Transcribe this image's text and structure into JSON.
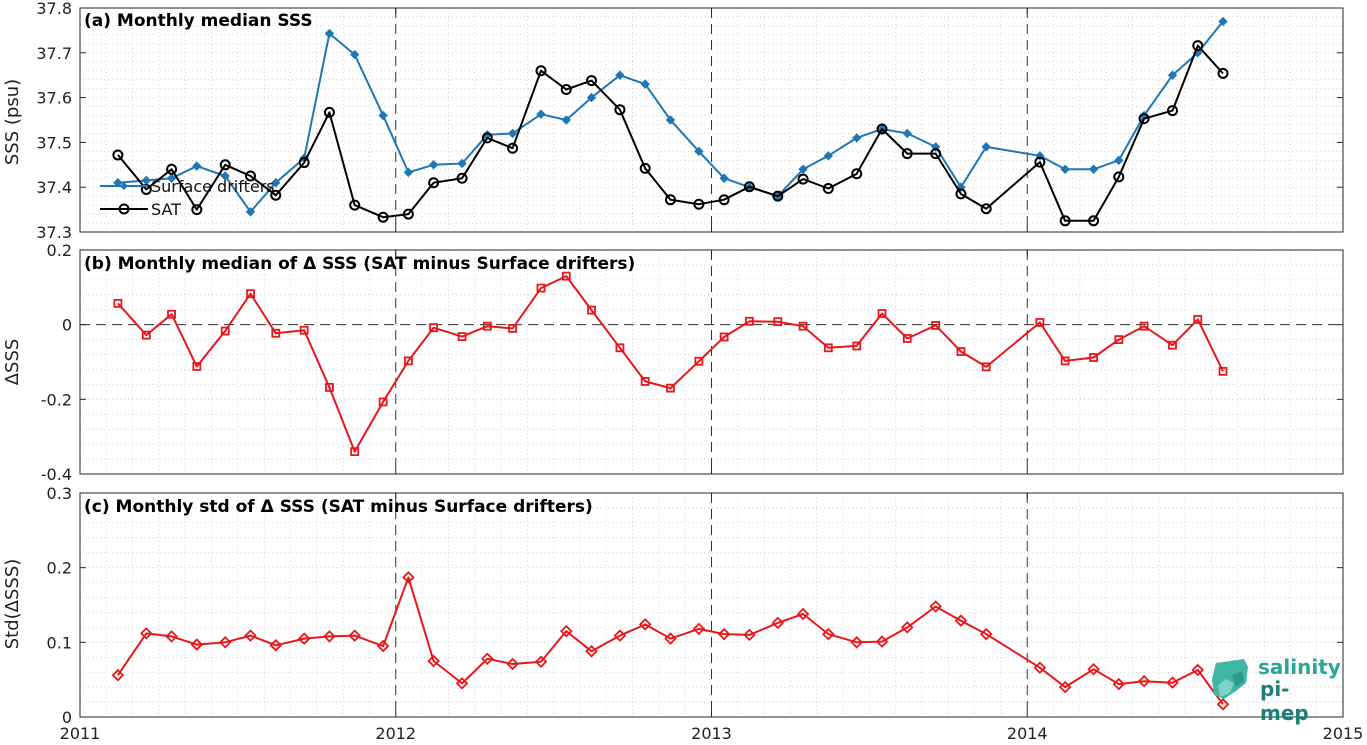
{
  "chart_data": [
    {
      "type": "line",
      "title": "(a) Monthly median SSS",
      "ylabel": "SSS (psu)",
      "ylim": [
        37.3,
        37.8
      ],
      "yticks": [
        "37.3",
        "37.4",
        "37.5",
        "37.6",
        "37.7",
        "37.8"
      ],
      "xlim": [
        2011,
        2015
      ],
      "xticks": [
        "2011",
        "2012",
        "2013",
        "2014",
        "2015"
      ],
      "vlines": [
        2012,
        2013,
        2014
      ],
      "grid": true,
      "legend_position": "left",
      "series": [
        {
          "name": "Surface drifters",
          "color": "#1f77b4",
          "marker": "diamond",
          "x": [
            2011.12,
            2011.21,
            2011.29,
            2011.37,
            2011.46,
            2011.54,
            2011.62,
            2011.71,
            2011.79,
            2011.87,
            2011.96,
            2012.04,
            2012.12,
            2012.21,
            2012.29,
            2012.37,
            2012.46,
            2012.54,
            2012.62,
            2012.71,
            2012.79,
            2012.87,
            2012.96,
            2013.04,
            2013.12,
            2013.21,
            2013.29,
            2013.37,
            2013.46,
            2013.54,
            2013.62,
            2013.71,
            2013.79,
            2013.87,
            2014.04,
            2014.12,
            2014.21,
            2014.29,
            2014.37,
            2014.46,
            2014.54,
            2014.62
          ],
          "y": [
            37.41,
            37.415,
            37.42,
            37.447,
            37.425,
            37.345,
            37.41,
            37.465,
            37.743,
            37.696,
            37.56,
            37.433,
            37.45,
            37.453,
            37.517,
            37.52,
            37.563,
            37.55,
            37.6,
            37.65,
            37.63,
            37.55,
            37.48,
            37.42,
            37.4,
            37.38,
            37.44,
            37.47,
            37.51,
            37.53,
            37.52,
            37.49,
            37.4,
            37.49,
            37.47,
            37.44,
            37.44,
            37.46,
            37.56,
            37.65,
            37.7,
            37.77
          ]
        },
        {
          "name": "SAT",
          "color": "#000000",
          "marker": "circle",
          "x": [
            2011.12,
            2011.21,
            2011.29,
            2011.37,
            2011.46,
            2011.54,
            2011.62,
            2011.71,
            2011.79,
            2011.87,
            2011.96,
            2012.04,
            2012.12,
            2012.21,
            2012.29,
            2012.37,
            2012.46,
            2012.54,
            2012.62,
            2012.71,
            2012.79,
            2012.87,
            2012.96,
            2013.04,
            2013.12,
            2013.21,
            2013.29,
            2013.37,
            2013.46,
            2013.54,
            2013.62,
            2013.71,
            2013.79,
            2013.87,
            2014.04,
            2014.12,
            2014.21,
            2014.29,
            2014.37,
            2014.46,
            2014.54,
            2014.62
          ],
          "y": [
            37.472,
            37.395,
            37.44,
            37.35,
            37.45,
            37.425,
            37.382,
            37.455,
            37.567,
            37.36,
            37.333,
            37.34,
            37.41,
            37.42,
            37.51,
            37.487,
            37.66,
            37.618,
            37.638,
            37.573,
            37.442,
            37.372,
            37.362,
            37.372,
            37.401,
            37.38,
            37.418,
            37.397,
            37.43,
            37.53,
            37.475,
            37.475,
            37.385,
            37.352,
            37.456,
            37.325,
            37.325,
            37.423,
            37.553,
            37.571,
            37.716,
            37.654
          ]
        }
      ]
    },
    {
      "type": "line",
      "title": "(b) Monthly median of Δ SSS (SAT minus Surface drifters)",
      "ylabel": "ΔSSS",
      "ylim": [
        -0.4,
        0.2
      ],
      "yticks": [
        "-0.4",
        "-0.2",
        "0",
        "0.2"
      ],
      "xlim": [
        2011,
        2015
      ],
      "xticks": [
        "2011",
        "2012",
        "2013",
        "2014",
        "2015"
      ],
      "vlines": [
        2012,
        2013,
        2014
      ],
      "hline": 0,
      "grid": true,
      "series": [
        {
          "color": "#e8171c",
          "marker": "square",
          "x": [
            2011.12,
            2011.21,
            2011.29,
            2011.37,
            2011.46,
            2011.54,
            2011.62,
            2011.71,
            2011.79,
            2011.87,
            2011.96,
            2012.04,
            2012.12,
            2012.21,
            2012.29,
            2012.37,
            2012.46,
            2012.54,
            2012.62,
            2012.71,
            2012.79,
            2012.87,
            2012.96,
            2013.04,
            2013.12,
            2013.21,
            2013.29,
            2013.37,
            2013.46,
            2013.54,
            2013.62,
            2013.71,
            2013.79,
            2013.87,
            2014.04,
            2014.12,
            2014.21,
            2014.29,
            2014.37,
            2014.46,
            2014.54,
            2014.62
          ],
          "y": [
            0.057,
            -0.028,
            0.028,
            -0.112,
            -0.017,
            0.083,
            -0.023,
            -0.015,
            -0.168,
            -0.34,
            -0.207,
            -0.097,
            -0.008,
            -0.032,
            -0.004,
            -0.01,
            0.098,
            0.13,
            0.039,
            -0.062,
            -0.152,
            -0.17,
            -0.098,
            -0.033,
            0.009,
            0.008,
            -0.004,
            -0.062,
            -0.057,
            0.03,
            -0.037,
            -0.002,
            -0.072,
            -0.113,
            0.006,
            -0.097,
            -0.088,
            -0.04,
            -0.004,
            -0.055,
            0.014,
            -0.125
          ]
        }
      ]
    },
    {
      "type": "line",
      "title": "(c) Monthly std of Δ SSS (SAT minus Surface drifters)",
      "ylabel": "Std(ΔSSS)",
      "ylim": [
        0,
        0.3
      ],
      "yticks": [
        "0",
        "0.1",
        "0.2",
        "0.3"
      ],
      "xlim": [
        2011,
        2015
      ],
      "xticks": [
        "2011",
        "2012",
        "2013",
        "2014",
        "2015"
      ],
      "vlines": [
        2012,
        2013,
        2014
      ],
      "grid": true,
      "series": [
        {
          "color": "#e8171c",
          "marker": "diamond",
          "x": [
            2011.12,
            2011.21,
            2011.29,
            2011.37,
            2011.46,
            2011.54,
            2011.62,
            2011.71,
            2011.79,
            2011.87,
            2011.96,
            2012.04,
            2012.12,
            2012.21,
            2012.29,
            2012.37,
            2012.46,
            2012.54,
            2012.62,
            2012.71,
            2012.79,
            2012.87,
            2012.96,
            2013.04,
            2013.12,
            2013.21,
            2013.29,
            2013.37,
            2013.46,
            2013.54,
            2013.62,
            2013.71,
            2013.79,
            2013.87,
            2014.04,
            2014.12,
            2014.21,
            2014.29,
            2014.37,
            2014.46,
            2014.54,
            2014.62
          ],
          "y": [
            0.056,
            0.112,
            0.108,
            0.097,
            0.1,
            0.109,
            0.096,
            0.105,
            0.108,
            0.109,
            0.095,
            0.187,
            0.075,
            0.045,
            0.078,
            0.071,
            0.074,
            0.115,
            0.088,
            0.109,
            0.124,
            0.105,
            0.118,
            0.111,
            0.11,
            0.126,
            0.138,
            0.111,
            0.1,
            0.101,
            0.12,
            0.148,
            0.129,
            0.111,
            0.066,
            0.04,
            0.064,
            0.044,
            0.048,
            0.046,
            0.063,
            0.017
          ]
        }
      ]
    }
  ],
  "logo": {
    "line1": "salinity",
    "line2": "pi-mep"
  }
}
